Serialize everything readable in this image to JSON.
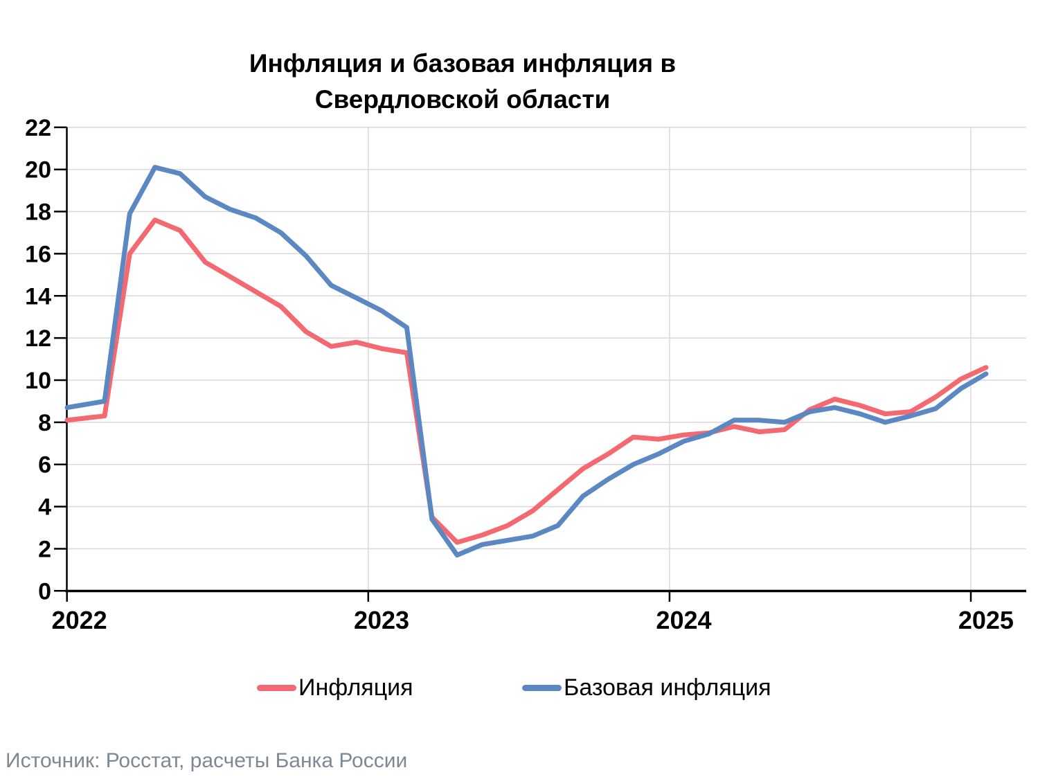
{
  "title": {
    "line1": "Инфляция и базовая инфляция в",
    "line2": "Свердловской области"
  },
  "source": "Источник: Росстат, расчеты Банка России",
  "legend": {
    "items": [
      {
        "label": "Инфляция",
        "color": "#f4696f"
      },
      {
        "label": "Базовая инфляция",
        "color": "#5b87c2"
      }
    ]
  },
  "colors": {
    "inflation_line": "#f4696f",
    "core_inflation_line": "#5b87c2",
    "gridline": "#d8d8d8",
    "axis": "#000000",
    "source_text": "#7c8893"
  },
  "chart_data": {
    "type": "line",
    "title": "Инфляция и базовая инфляция в Свердловской области",
    "x": [
      "2022-01",
      "2022-02",
      "2022-03",
      "2022-04",
      "2022-05",
      "2022-06",
      "2022-07",
      "2022-08",
      "2022-09",
      "2022-10",
      "2022-11",
      "2022-12",
      "2023-01",
      "2023-02",
      "2023-03",
      "2023-04",
      "2023-05",
      "2023-06",
      "2023-07",
      "2023-08",
      "2023-09",
      "2023-10",
      "2023-11",
      "2023-12",
      "2024-01",
      "2024-02",
      "2024-03",
      "2024-04",
      "2024-05",
      "2024-06",
      "2024-07",
      "2024-08",
      "2024-09",
      "2024-10",
      "2024-11",
      "2024-12",
      "2025-01"
    ],
    "series": [
      {
        "name": "Инфляция",
        "color": "#f4696f",
        "values": [
          8.1,
          8.3,
          16.0,
          17.6,
          17.1,
          15.6,
          14.9,
          14.2,
          13.5,
          12.3,
          11.6,
          11.8,
          11.5,
          11.3,
          3.5,
          2.3,
          2.65,
          3.1,
          3.8,
          4.8,
          5.8,
          6.5,
          7.3,
          7.2,
          7.4,
          7.5,
          7.8,
          7.55,
          7.65,
          8.6,
          9.1,
          8.8,
          8.4,
          8.5,
          9.2,
          10.05,
          10.6
        ]
      },
      {
        "name": "Базовая инфляция",
        "color": "#5b87c2",
        "values": [
          8.7,
          9.0,
          17.9,
          20.1,
          19.8,
          18.7,
          18.1,
          17.7,
          17.0,
          15.9,
          14.5,
          13.9,
          13.3,
          12.5,
          3.4,
          1.7,
          2.2,
          2.4,
          2.6,
          3.1,
          4.5,
          5.3,
          6.0,
          6.5,
          7.1,
          7.45,
          8.1,
          8.1,
          8.0,
          8.5,
          8.7,
          8.4,
          8.0,
          8.3,
          8.65,
          9.6,
          10.3
        ]
      }
    ],
    "xticks": [
      "2022",
      "2023",
      "2024",
      "2025"
    ],
    "yticks": [
      0,
      2,
      4,
      6,
      8,
      10,
      12,
      14,
      16,
      18,
      20,
      22
    ],
    "ylim": [
      0,
      22
    ],
    "grid": true,
    "legend_position": "bottom",
    "ylabel": "",
    "xlabel": ""
  }
}
